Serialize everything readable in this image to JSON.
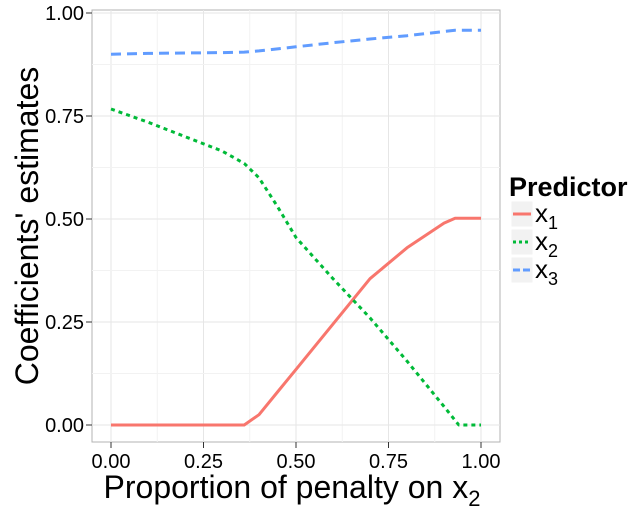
{
  "chart_data": {
    "type": "line",
    "xlabel": "Proportion of penalty on x",
    "xlabel_subscript": "2",
    "ylabel": "Coefficients' estimates",
    "xlim": [
      0,
      1
    ],
    "ylim": [
      0,
      1
    ],
    "x_ticks": [
      0,
      0.25,
      0.5,
      0.75,
      1
    ],
    "x_tick_labels": [
      "0.00",
      "0.25",
      "0.50",
      "0.75",
      "1.00"
    ],
    "y_ticks": [
      0,
      0.25,
      0.5,
      0.75,
      1
    ],
    "y_tick_labels": [
      "0.00",
      "0.25",
      "0.50",
      "0.75",
      "1.00"
    ],
    "grid": true,
    "legend": {
      "title": "Predictor",
      "placement": "right",
      "entries": [
        {
          "label": "x",
          "subscript": "1"
        },
        {
          "label": "x",
          "subscript": "2"
        },
        {
          "label": "x",
          "subscript": "3"
        }
      ]
    },
    "series": [
      {
        "name": "x1",
        "color": "#F8766D",
        "dash": "solid",
        "points": [
          [
            0,
            0
          ],
          [
            0.1,
            0
          ],
          [
            0.2,
            0
          ],
          [
            0.3,
            0
          ],
          [
            0.36,
            0
          ],
          [
            0.4,
            0.025
          ],
          [
            0.45,
            0.08
          ],
          [
            0.5,
            0.135
          ],
          [
            0.6,
            0.245
          ],
          [
            0.7,
            0.355
          ],
          [
            0.8,
            0.43
          ],
          [
            0.9,
            0.49
          ],
          [
            0.93,
            0.502
          ],
          [
            1.0,
            0.502
          ]
        ]
      },
      {
        "name": "x2",
        "color": "#00BA38",
        "dash": "dotted",
        "points": [
          [
            0,
            0.767
          ],
          [
            0.1,
            0.735
          ],
          [
            0.2,
            0.7
          ],
          [
            0.3,
            0.665
          ],
          [
            0.36,
            0.635
          ],
          [
            0.4,
            0.6
          ],
          [
            0.45,
            0.53
          ],
          [
            0.5,
            0.455
          ],
          [
            0.6,
            0.355
          ],
          [
            0.7,
            0.26
          ],
          [
            0.8,
            0.155
          ],
          [
            0.9,
            0.045
          ],
          [
            0.94,
            0.0
          ],
          [
            1.0,
            0.0
          ]
        ]
      },
      {
        "name": "x3",
        "color": "#619CFF",
        "dash": "dashed",
        "points": [
          [
            0,
            0.9
          ],
          [
            0.1,
            0.902
          ],
          [
            0.2,
            0.903
          ],
          [
            0.3,
            0.904
          ],
          [
            0.36,
            0.905
          ],
          [
            0.4,
            0.908
          ],
          [
            0.5,
            0.918
          ],
          [
            0.6,
            0.928
          ],
          [
            0.7,
            0.937
          ],
          [
            0.8,
            0.945
          ],
          [
            0.9,
            0.955
          ],
          [
            0.93,
            0.958
          ],
          [
            1.0,
            0.958
          ]
        ]
      }
    ]
  }
}
